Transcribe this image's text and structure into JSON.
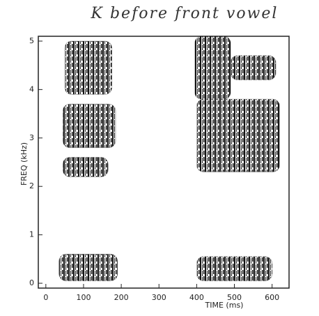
{
  "chart_data": {
    "type": "spectrogram",
    "title": "K before front vowel",
    "x_label": "TIME (ms)",
    "y_label": "FREQ (kHz)",
    "xlim": [
      -20,
      645
    ],
    "ylim": [
      -0.1,
      5.1
    ],
    "xticks": [
      0,
      100,
      200,
      300,
      400,
      500,
      600
    ],
    "yticks": [
      0,
      1,
      2,
      3,
      4,
      5
    ],
    "color": "#111111",
    "regions": [
      {
        "x": [
          50,
          175
        ],
        "y": [
          3.9,
          5.0
        ]
      },
      {
        "x": [
          45,
          185
        ],
        "y": [
          2.8,
          3.7
        ]
      },
      {
        "x": [
          45,
          165
        ],
        "y": [
          2.2,
          2.6
        ]
      },
      {
        "x": [
          35,
          190
        ],
        "y": [
          0.05,
          0.6
        ]
      },
      {
        "x": [
          395,
          490
        ],
        "y": [
          3.8,
          5.1
        ]
      },
      {
        "x": [
          490,
          610
        ],
        "y": [
          4.2,
          4.7
        ]
      },
      {
        "x": [
          400,
          620
        ],
        "y": [
          2.3,
          3.8
        ]
      },
      {
        "x": [
          400,
          600
        ],
        "y": [
          0.05,
          0.55
        ]
      }
    ]
  }
}
